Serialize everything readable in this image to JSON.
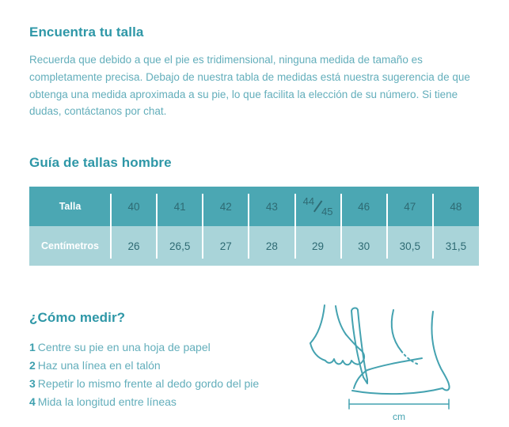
{
  "colors": {
    "heading": "#2e97a7",
    "body_text": "#63aebb",
    "step_number": "#3d9fae",
    "table_header_bg": "#4ba7b3",
    "table_row_bg": "#a9d4d9",
    "table_value_text": "#2e6a73",
    "table_label_text": "#ffffff",
    "illustration_stroke": "#44a2b0"
  },
  "intro": {
    "title": "Encuentra tu talla",
    "body": "Recuerda que debido a que el pie es tridimensional, ninguna medida de tamaño es completamente precisa. Debajo de nuestra tabla de medidas está nuestra sugerencia de que obtenga una medida aproximada a su pie, lo que facilita la elección de su número. Si tiene dudas, contáctanos por chat."
  },
  "size_guide": {
    "title": "Guía de tallas hombre",
    "rows": [
      {
        "label": "Talla",
        "values": [
          "40",
          "41",
          "42",
          "43",
          "44/45",
          "46",
          "47",
          "48"
        ]
      },
      {
        "label": "Centímetros",
        "values": [
          "26",
          "26,5",
          "27",
          "28",
          "29",
          "30",
          "30,5",
          "31,5"
        ]
      }
    ]
  },
  "how_to_measure": {
    "title": "¿Cómo medir?",
    "steps": [
      {
        "number": "1",
        "text": "Centre su pie en una hoja de papel"
      },
      {
        "number": "2",
        "text": "Haz una línea en el talón"
      },
      {
        "number": "3",
        "text": "Repetir lo mismo frente al dedo gordo del pie"
      },
      {
        "number": "4",
        "text": "Mida la longitud entre líneas"
      }
    ],
    "illustration_label": "cm"
  }
}
